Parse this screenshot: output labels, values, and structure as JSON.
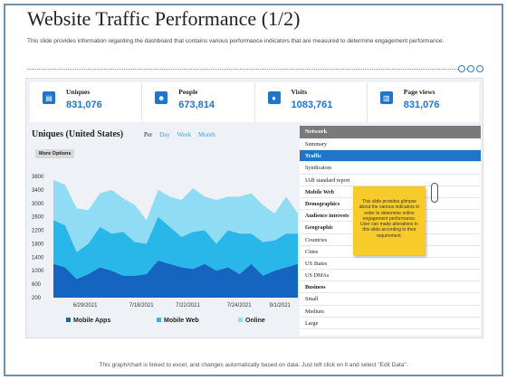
{
  "title": "Website Traffic Performance (1/2)",
  "subtitle": "This slide provides information regarding the dashboard that contains various performance indicators that are measured to determine engagement performance.",
  "kpis": [
    {
      "label": "Uniques",
      "value": "831,076",
      "icon": "id-card-icon"
    },
    {
      "label": "People",
      "value": "673,814",
      "icon": "people-icon"
    },
    {
      "label": "Visits",
      "value": "1083,761",
      "icon": "user-icon"
    },
    {
      "label": "Page views",
      "value": "831,076",
      "icon": "page-icon"
    }
  ],
  "chart_header": {
    "title": "Uniques (United States)",
    "per": "Per",
    "periods": [
      "Day",
      "Week",
      "Month"
    ],
    "more_options": "More Options"
  },
  "side_list": {
    "header": "Network",
    "items": [
      {
        "label": "Summary",
        "style": "normal"
      },
      {
        "label": "Traffic",
        "style": "active"
      },
      {
        "label": "Syndicators",
        "style": "normal"
      },
      {
        "label": "IAB standard report",
        "style": "normal"
      },
      {
        "label": "Mobile Web",
        "style": "bold"
      },
      {
        "label": "Demographics",
        "style": "bold"
      },
      {
        "label": "Audience interests",
        "style": "bold"
      },
      {
        "label": "Geographic",
        "style": "bold"
      },
      {
        "label": "Countries",
        "style": "normal"
      },
      {
        "label": "Cities",
        "style": "normal"
      },
      {
        "label": "US States",
        "style": "normal"
      },
      {
        "label": "US DMAs",
        "style": "normal"
      },
      {
        "label": "Business",
        "style": "bold"
      },
      {
        "label": "Small",
        "style": "normal"
      },
      {
        "label": "Medium",
        "style": "normal"
      },
      {
        "label": "Large",
        "style": "normal"
      }
    ]
  },
  "note": "This slide provides glimpse about the various indicators in order to determine online engagement performance. User can made alterations in this slide according to their requirement.",
  "footer": "This graph/chart is linked to excel, and changes automatically based on data. Just left click on it and select \"Edit Data\".",
  "colors": {
    "mobile_apps": "#1565c0",
    "mobile_web": "#29b6e8",
    "online": "#8fdcf4",
    "accent": "#1f76c8"
  },
  "chart_data": {
    "type": "area",
    "stacked": true,
    "x_tick_labels": [
      "6/29/2021",
      "7/18/2021",
      "7/22/2021",
      "7/24/2021",
      "9/1/2021"
    ],
    "ylim": [
      200,
      3800
    ],
    "y_ticks": [
      3800,
      3400,
      3000,
      2600,
      2200,
      1800,
      1400,
      1000,
      600,
      200
    ],
    "series": [
      {
        "name": "Mobile Apps",
        "values": [
          1000,
          900,
          550,
          700,
          900,
          800,
          650,
          650,
          700,
          1100,
          1000,
          900,
          850,
          1000,
          800,
          900,
          700,
          1000,
          650,
          800,
          900,
          1000
        ]
      },
      {
        "name": "Mobile Web",
        "values": [
          1300,
          1250,
          800,
          900,
          1200,
          1100,
          1300,
          1000,
          900,
          1300,
          1100,
          900,
          1100,
          1000,
          800,
          1100,
          1200,
          900,
          1000,
          900,
          1000,
          900
        ]
      },
      {
        "name": "Online",
        "values": [
          1200,
          1200,
          1300,
          1000,
          1000,
          1300,
          1000,
          1100,
          700,
          800,
          900,
          1100,
          1300,
          1000,
          1300,
          1000,
          1100,
          1200,
          1100,
          800,
          1100,
          600
        ]
      }
    ],
    "legend": "bottom",
    "grid": false
  }
}
